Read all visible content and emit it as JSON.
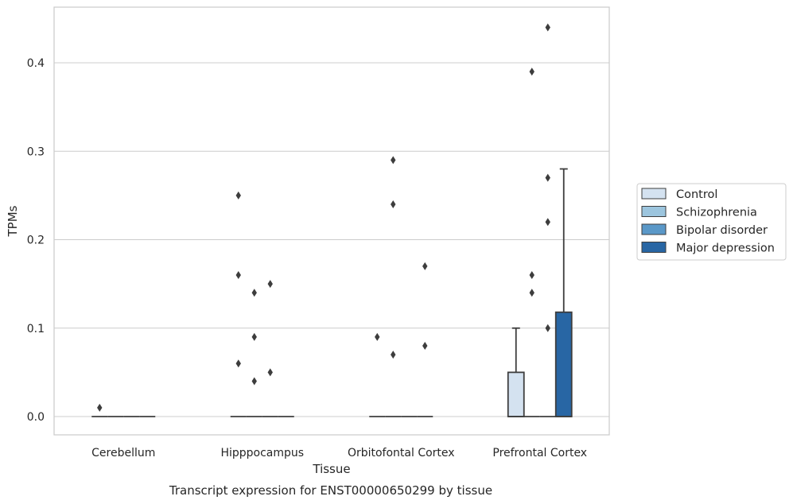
{
  "chart_data": {
    "type": "box",
    "title": "",
    "caption": "Transcript expression for ENST00000650299 by tissue",
    "xlabel": "Tissue",
    "ylabel": "TPMs",
    "categories": [
      "Cerebellum",
      "Hipppocampus",
      "Orbitofontal Cortex",
      "Prefrontal Cortex"
    ],
    "ylim": [
      -0.022,
      0.465
    ],
    "yticks": [
      0.0,
      0.1,
      0.2,
      0.3,
      0.4
    ],
    "ytick_labels": [
      "0.0",
      "0.1",
      "0.2",
      "0.3",
      "0.4"
    ],
    "grid": "horizontal",
    "legend_position": "right",
    "series": [
      {
        "name": "Control",
        "color": "#d4e2f0",
        "boxes": [
          {
            "q1": 0,
            "median": 0,
            "q3": 0,
            "whisker_low": 0,
            "whisker_high": 0,
            "outliers": [
              0.01
            ]
          },
          {
            "q1": 0,
            "median": 0,
            "q3": 0,
            "whisker_low": 0,
            "whisker_high": 0,
            "outliers": [
              0.25,
              0.16,
              0.06
            ]
          },
          {
            "q1": 0,
            "median": 0,
            "q3": 0,
            "whisker_low": 0,
            "whisker_high": 0,
            "outliers": [
              0.09
            ]
          },
          {
            "q1": 0,
            "median": 0,
            "q3": 0.05,
            "whisker_low": 0,
            "whisker_high": 0.1,
            "outliers": []
          }
        ]
      },
      {
        "name": "Schizophrenia",
        "color": "#9cc5de",
        "boxes": [
          {
            "q1": 0,
            "median": 0,
            "q3": 0,
            "whisker_low": 0,
            "whisker_high": 0,
            "outliers": []
          },
          {
            "q1": 0,
            "median": 0,
            "q3": 0,
            "whisker_low": 0,
            "whisker_high": 0,
            "outliers": [
              0.14,
              0.09,
              0.04
            ]
          },
          {
            "q1": 0,
            "median": 0,
            "q3": 0,
            "whisker_low": 0,
            "whisker_high": 0,
            "outliers": [
              0.29,
              0.24,
              0.07
            ]
          },
          {
            "q1": 0,
            "median": 0,
            "q3": 0,
            "whisker_low": 0,
            "whisker_high": 0,
            "outliers": [
              0.39,
              0.16,
              0.14
            ]
          }
        ]
      },
      {
        "name": "Bipolar disorder",
        "color": "#5a98c8",
        "boxes": [
          {
            "q1": 0,
            "median": 0,
            "q3": 0,
            "whisker_low": 0,
            "whisker_high": 0,
            "outliers": []
          },
          {
            "q1": 0,
            "median": 0,
            "q3": 0,
            "whisker_low": 0,
            "whisker_high": 0,
            "outliers": [
              0.15,
              0.05
            ]
          },
          {
            "q1": 0,
            "median": 0,
            "q3": 0,
            "whisker_low": 0,
            "whisker_high": 0,
            "outliers": []
          },
          {
            "q1": 0,
            "median": 0,
            "q3": 0,
            "whisker_low": 0,
            "whisker_high": 0,
            "outliers": [
              0.44,
              0.27,
              0.22,
              0.1
            ]
          }
        ]
      },
      {
        "name": "Major depression",
        "color": "#2866a4",
        "boxes": [
          {
            "q1": 0,
            "median": 0,
            "q3": 0,
            "whisker_low": 0,
            "whisker_high": 0,
            "outliers": []
          },
          {
            "q1": 0,
            "median": 0,
            "q3": 0,
            "whisker_low": 0,
            "whisker_high": 0,
            "outliers": []
          },
          {
            "q1": 0,
            "median": 0,
            "q3": 0,
            "whisker_low": 0,
            "whisker_high": 0,
            "outliers": [
              0.17,
              0.08
            ]
          },
          {
            "q1": 0,
            "median": 0,
            "q3": 0.118,
            "whisker_low": 0,
            "whisker_high": 0.28,
            "outliers": []
          }
        ]
      }
    ]
  }
}
